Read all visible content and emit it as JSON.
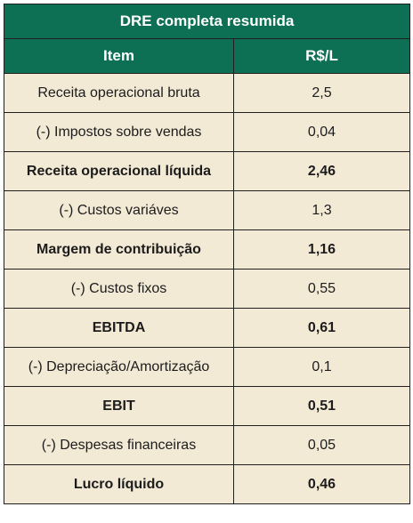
{
  "table": {
    "title": "DRE completa resumida",
    "headers": {
      "item": "Item",
      "value": "R$/L"
    },
    "rows": [
      {
        "item": "Receita operacional bruta",
        "value": "2,5",
        "bold": false
      },
      {
        "item": "(-) Impostos sobre vendas",
        "value": "0,04",
        "bold": false
      },
      {
        "item": "Receita operacional líquida",
        "value": "2,46",
        "bold": true
      },
      {
        "item": "(-) Custos variáves",
        "value": "1,3",
        "bold": false
      },
      {
        "item": "Margem de contribuição",
        "value": "1,16",
        "bold": true
      },
      {
        "item": "(-) Custos fixos",
        "value": "0,55",
        "bold": false
      },
      {
        "item": "EBITDA",
        "value": "0,61",
        "bold": true
      },
      {
        "item": "(-) Depreciação/Amortização",
        "value": "0,1",
        "bold": false
      },
      {
        "item": "EBIT",
        "value": "0,51",
        "bold": true
      },
      {
        "item": "(-) Despesas financeiras",
        "value": "0,05",
        "bold": false
      },
      {
        "item": "Lucro líquido",
        "value": "0,46",
        "bold": true
      }
    ]
  },
  "colors": {
    "header_bg": "#0d7055",
    "row_bg": "#f3ead6",
    "border": "#1f1f1f"
  }
}
